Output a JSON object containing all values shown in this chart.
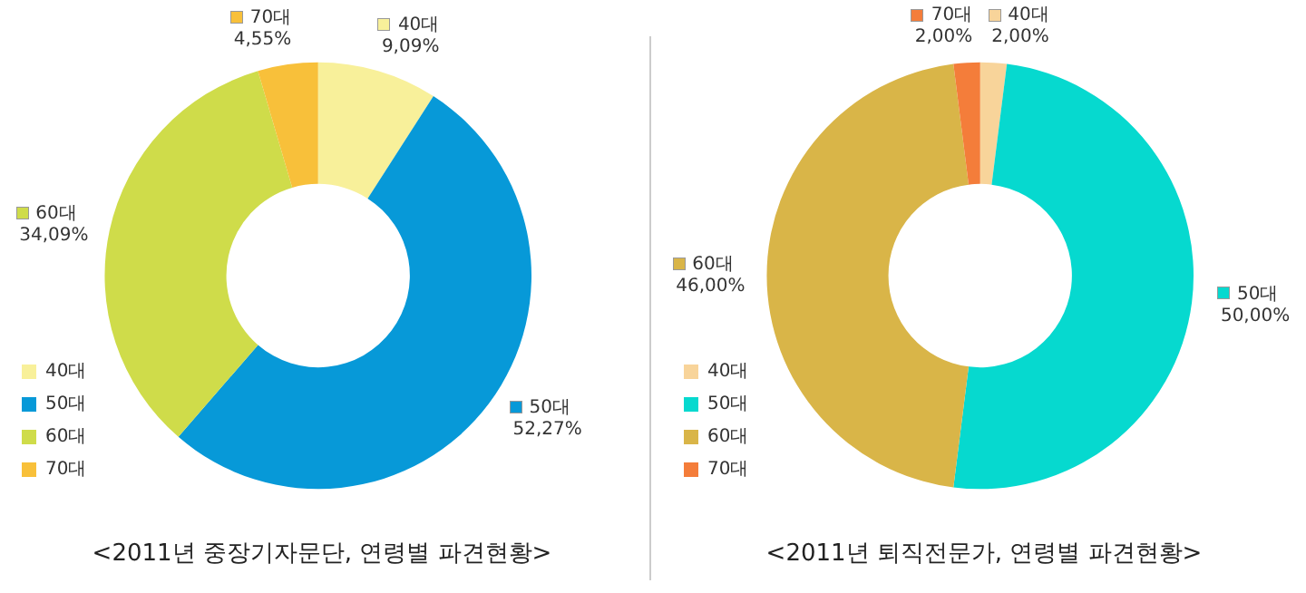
{
  "chart_data": [
    {
      "type": "donut",
      "title": "<2011년 중장기자문단, 연령별 파견현황>",
      "categories": [
        "40대",
        "50대",
        "60대",
        "70대"
      ],
      "values": [
        9.09,
        52.27,
        34.09,
        4.55
      ],
      "colors": [
        "#f8f09a",
        "#0799d8",
        "#cfdc4a",
        "#f8c03a"
      ],
      "value_labels": [
        "9,09%",
        "52,27%",
        "34,09%",
        "4,55%"
      ],
      "legend": "left"
    },
    {
      "type": "donut",
      "title": "<2011년 퇴직전문가, 연령별 파견현황>",
      "categories": [
        "40대",
        "50대",
        "60대",
        "70대"
      ],
      "values": [
        2.0,
        50.0,
        46.0,
        2.0
      ],
      "colors": [
        "#f8d49a",
        "#06d9cf",
        "#d9b548",
        "#f47d3a"
      ],
      "value_labels": [
        "2,00%",
        "50,00%",
        "46,00%",
        "2,00%"
      ],
      "legend": "left"
    }
  ]
}
